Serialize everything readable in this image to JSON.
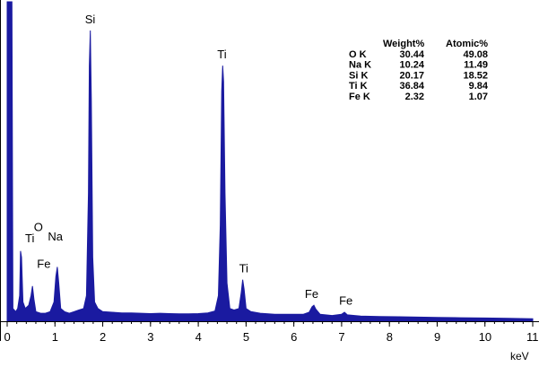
{
  "chart_data": {
    "type": "line",
    "title": "",
    "xlabel": "keV",
    "ylabel": "",
    "xlim": [
      0,
      11
    ],
    "ylim": [
      0,
      100
    ],
    "x_ticks": [
      "0",
      "1",
      "2",
      "3",
      "4",
      "5",
      "6",
      "7",
      "8",
      "9",
      "10",
      "11"
    ],
    "grid": false,
    "series_color": "#1a1aa0",
    "peaks": [
      {
        "element": "Si",
        "x": 1.74,
        "y": 91
      },
      {
        "element": "Ti",
        "x": 4.51,
        "y": 80
      },
      {
        "element": "O",
        "x": 0.52,
        "y": 26
      },
      {
        "element": "Ti",
        "x": 0.45,
        "y": 23
      },
      {
        "element": "Na",
        "x": 1.04,
        "y": 23
      },
      {
        "element": "Fe",
        "x": 0.7,
        "y": 15
      },
      {
        "element": "Ti",
        "x": 4.93,
        "y": 13
      },
      {
        "element": "Fe",
        "x": 6.4,
        "y": 5
      },
      {
        "element": "Fe",
        "x": 7.06,
        "y": 3
      }
    ],
    "spectrum_shape": [
      [
        0.0,
        100
      ],
      [
        0.05,
        100
      ],
      [
        0.1,
        100
      ],
      [
        0.12,
        4
      ],
      [
        0.18,
        3
      ],
      [
        0.22,
        4
      ],
      [
        0.26,
        8
      ],
      [
        0.28,
        22
      ],
      [
        0.3,
        20
      ],
      [
        0.33,
        6
      ],
      [
        0.38,
        4
      ],
      [
        0.45,
        5
      ],
      [
        0.5,
        8
      ],
      [
        0.53,
        11
      ],
      [
        0.56,
        7
      ],
      [
        0.6,
        3
      ],
      [
        0.7,
        2.5
      ],
      [
        0.8,
        2.5
      ],
      [
        0.9,
        3
      ],
      [
        0.98,
        6
      ],
      [
        1.02,
        14
      ],
      [
        1.05,
        17
      ],
      [
        1.08,
        12
      ],
      [
        1.12,
        4
      ],
      [
        1.2,
        3
      ],
      [
        1.3,
        2.5
      ],
      [
        1.4,
        3
      ],
      [
        1.5,
        3.5
      ],
      [
        1.6,
        4
      ],
      [
        1.66,
        8
      ],
      [
        1.7,
        40
      ],
      [
        1.72,
        80
      ],
      [
        1.74,
        91
      ],
      [
        1.76,
        70
      ],
      [
        1.79,
        20
      ],
      [
        1.83,
        6
      ],
      [
        1.9,
        4
      ],
      [
        2.0,
        3
      ],
      [
        2.2,
        2.8
      ],
      [
        2.4,
        2.6
      ],
      [
        2.6,
        2.6
      ],
      [
        2.8,
        2.5
      ],
      [
        3.0,
        2.4
      ],
      [
        3.2,
        2.5
      ],
      [
        3.4,
        2.4
      ],
      [
        3.6,
        2.3
      ],
      [
        3.8,
        2.3
      ],
      [
        4.0,
        2.4
      ],
      [
        4.2,
        2.6
      ],
      [
        4.35,
        3.2
      ],
      [
        4.42,
        8
      ],
      [
        4.46,
        30
      ],
      [
        4.49,
        72
      ],
      [
        4.51,
        80
      ],
      [
        4.53,
        75
      ],
      [
        4.56,
        40
      ],
      [
        4.6,
        12
      ],
      [
        4.66,
        4
      ],
      [
        4.75,
        3.5
      ],
      [
        4.85,
        4
      ],
      [
        4.9,
        9
      ],
      [
        4.93,
        13
      ],
      [
        4.96,
        10
      ],
      [
        5.0,
        4
      ],
      [
        5.1,
        3
      ],
      [
        5.3,
        2.5
      ],
      [
        5.6,
        2.2
      ],
      [
        5.9,
        2.2
      ],
      [
        6.2,
        2.2
      ],
      [
        6.32,
        2.8
      ],
      [
        6.38,
        4.5
      ],
      [
        6.42,
        5
      ],
      [
        6.46,
        3.8
      ],
      [
        6.55,
        2.2
      ],
      [
        6.8,
        1.8
      ],
      [
        7.0,
        2.2
      ],
      [
        7.06,
        2.8
      ],
      [
        7.12,
        2
      ],
      [
        7.4,
        1.6
      ],
      [
        7.8,
        1.5
      ],
      [
        8.2,
        1.4
      ],
      [
        8.6,
        1.3
      ],
      [
        9.0,
        1.2
      ],
      [
        9.5,
        1.1
      ],
      [
        10.0,
        1.0
      ],
      [
        10.5,
        0.9
      ],
      [
        11.0,
        0.8
      ]
    ],
    "quant_table": {
      "headers": [
        "",
        "Weight%",
        "Atomic%"
      ],
      "rows": [
        [
          "O K",
          "30.44",
          "49.08"
        ],
        [
          "Na K",
          "10.24",
          "11.49"
        ],
        [
          "Si K",
          "20.17",
          "18.52"
        ],
        [
          "Ti K",
          "36.84",
          "9.84"
        ],
        [
          "Fe K",
          "2.32",
          "1.07"
        ]
      ]
    }
  }
}
